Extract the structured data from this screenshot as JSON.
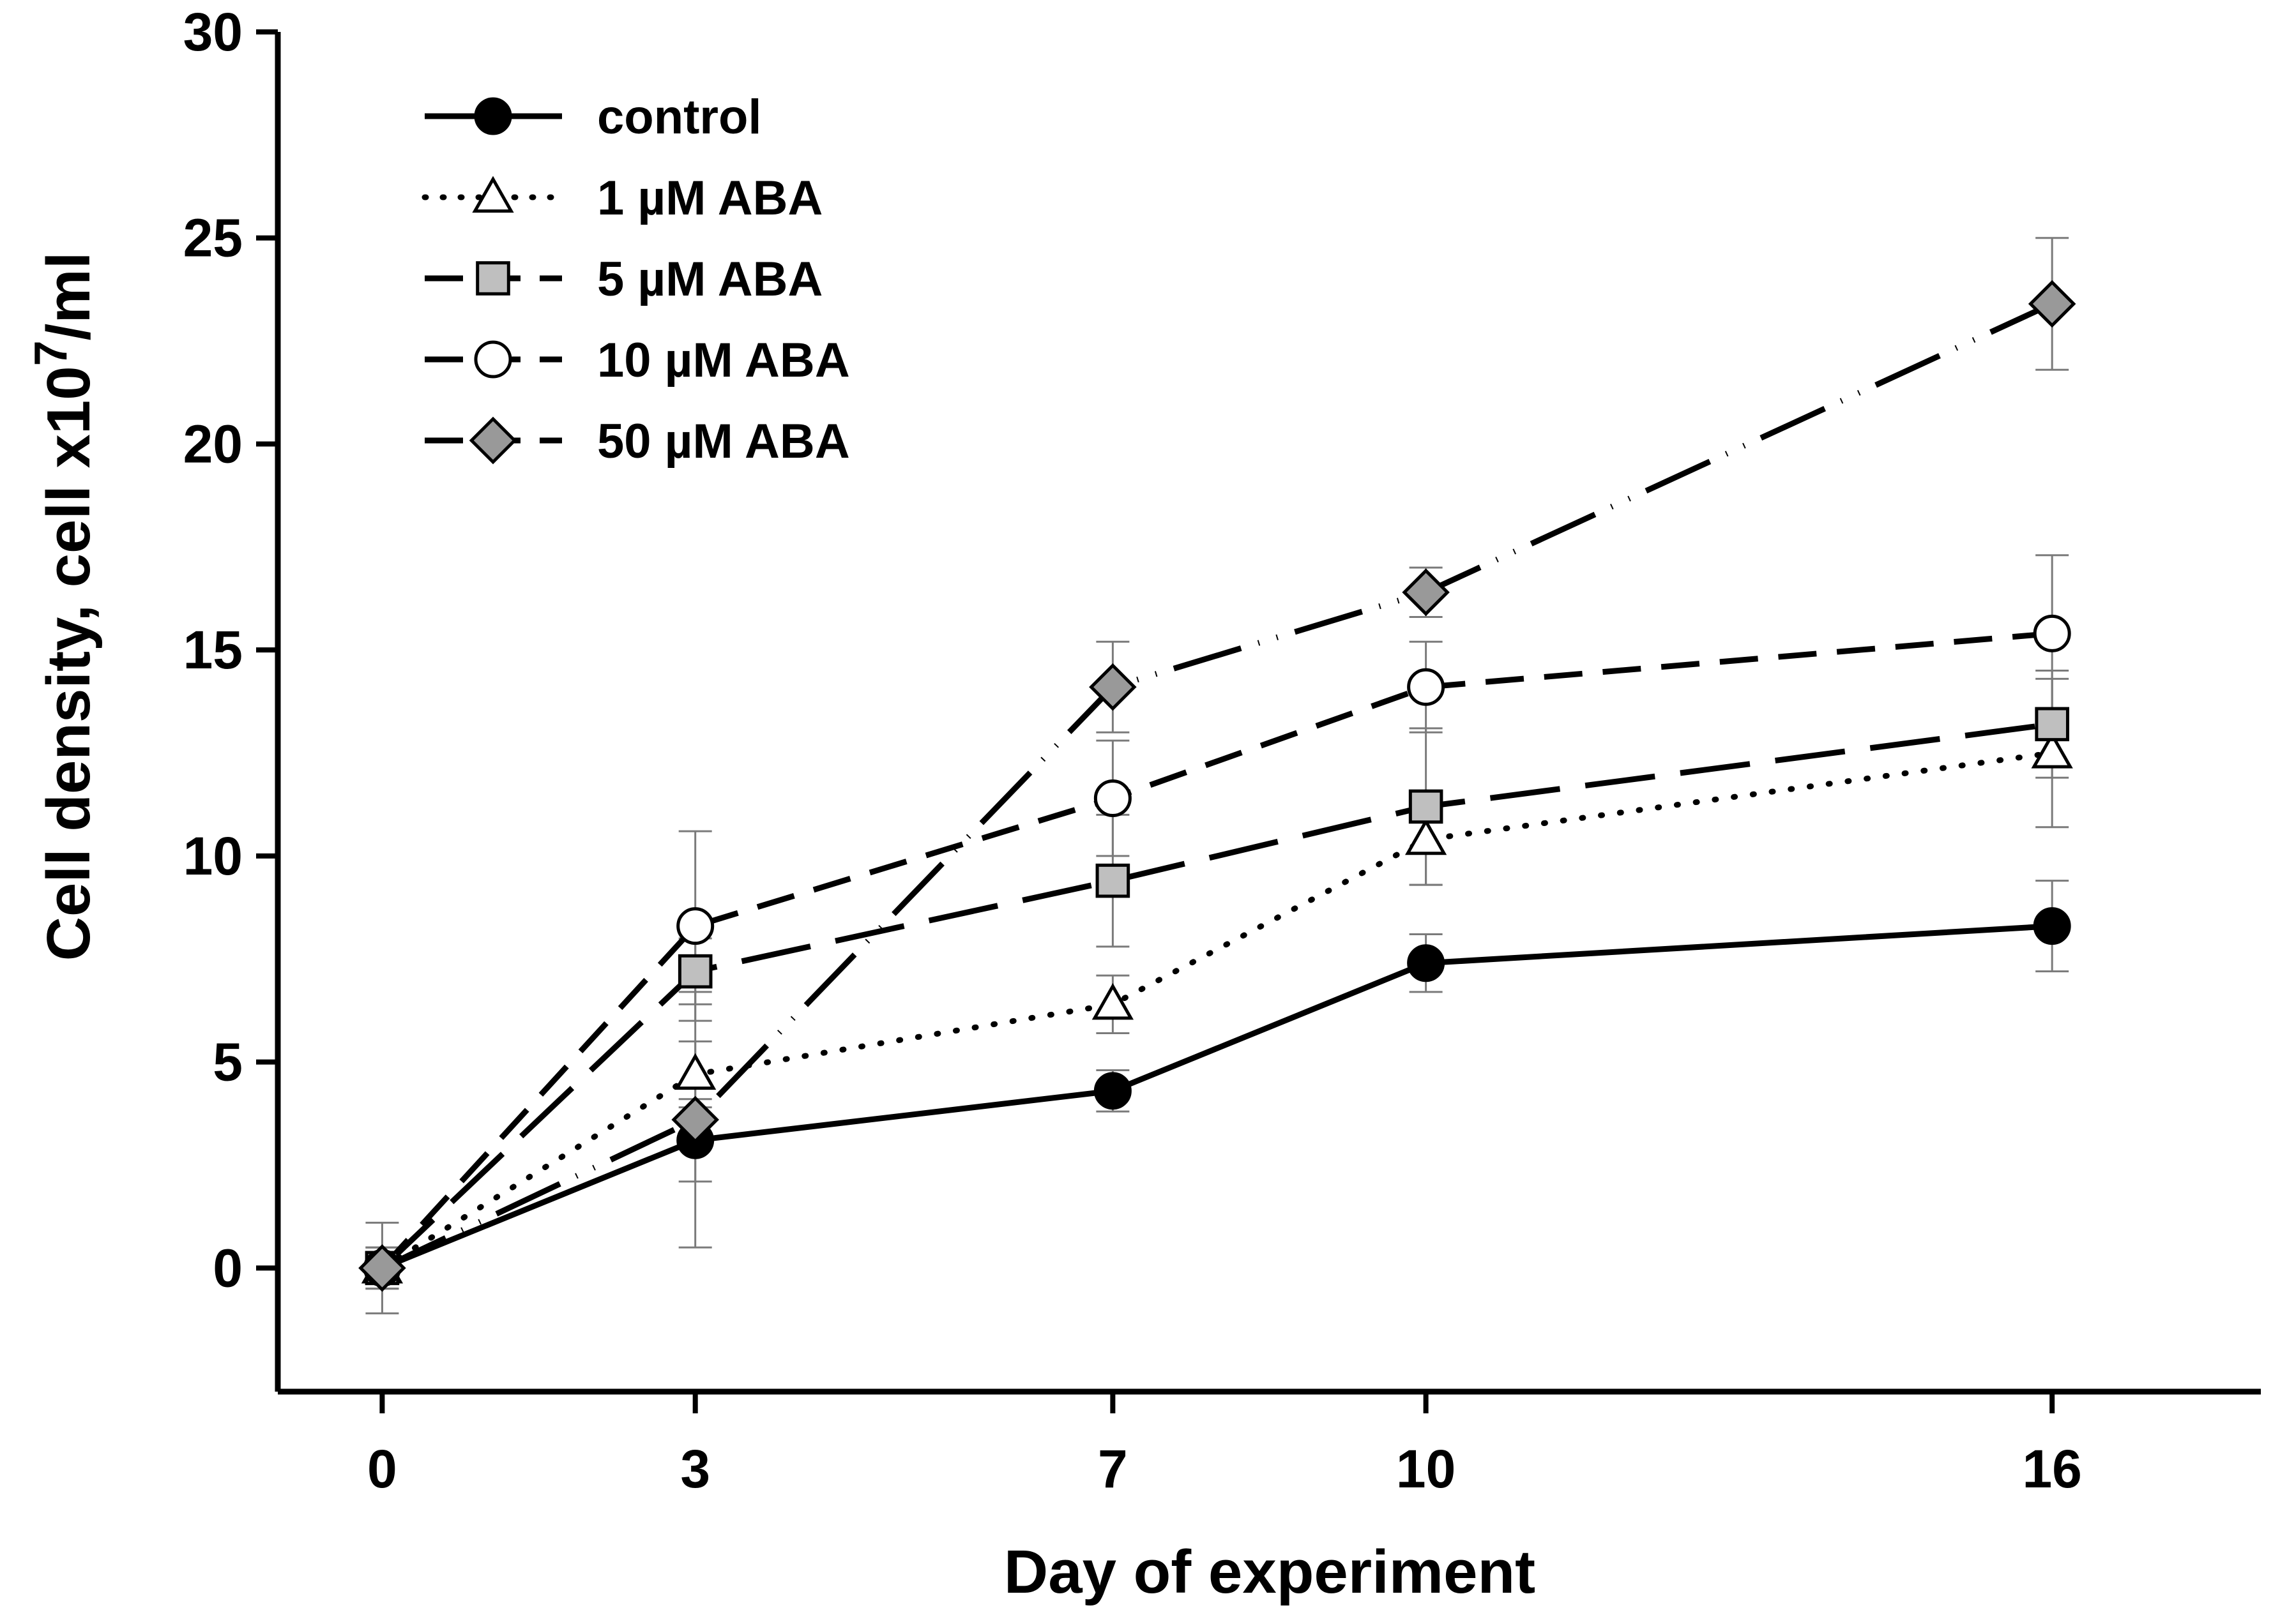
{
  "chart_data": {
    "type": "line",
    "title": "",
    "xlabel": "Day of experiment",
    "ylabel": "Cell density, cell x10",
    "ylabel_superscript": "7",
    "ylabel_suffix": "/ml",
    "x": [
      0,
      3,
      7,
      10,
      16
    ],
    "x_ticks": [
      "0",
      "3",
      "7",
      "10",
      "16"
    ],
    "xlim": [
      -1,
      18
    ],
    "ylim": [
      -3,
      30
    ],
    "y_ticks": [
      "0",
      "5",
      "10",
      "15",
      "20",
      "25",
      "30"
    ],
    "legend_position": "top-left",
    "series": [
      {
        "name": "control",
        "marker": "circle",
        "marker_fill": "#000000",
        "dash": "solid",
        "values": [
          0,
          3.1,
          4.3,
          7.4,
          8.3
        ],
        "errors": [
          0.5,
          1.0,
          0.5,
          0.7,
          1.1
        ]
      },
      {
        "name": "1 µM ABA",
        "marker": "triangle",
        "marker_fill": "#ffffff",
        "dash": "dotted",
        "values": [
          0,
          4.7,
          6.4,
          10.4,
          12.5
        ],
        "errors": [
          0.5,
          0.8,
          0.7,
          1.1,
          1.8
        ]
      },
      {
        "name": "5 µM ABA",
        "marker": "square",
        "marker_fill": "#bfbfbf",
        "dash": "longdash",
        "values": [
          0,
          7.2,
          9.4,
          11.2,
          13.2
        ],
        "errors": [
          0.5,
          0.8,
          1.6,
          1.9,
          1.3
        ]
      },
      {
        "name": "10 µM ABA",
        "marker": "circle",
        "marker_fill": "#ffffff",
        "dash": "dash",
        "values": [
          0,
          8.3,
          11.4,
          14.1,
          15.4
        ],
        "errors": [
          1.1,
          2.3,
          1.4,
          1.1,
          1.9
        ]
      },
      {
        "name": "50 µM ABA",
        "marker": "diamond",
        "marker_fill": "#999999",
        "dash": "dashdotdot",
        "values": [
          0,
          3.6,
          14.1,
          16.4,
          23.4
        ],
        "errors": [
          0.5,
          3.1,
          1.1,
          0.6,
          1.6
        ]
      }
    ]
  }
}
